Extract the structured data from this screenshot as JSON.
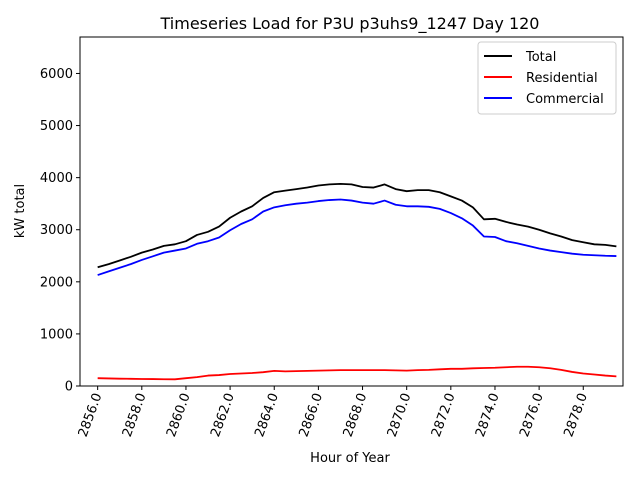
{
  "chart_data": {
    "type": "line",
    "title": "Timeseries Load for P3U p3uhs9_1247  Day 120",
    "xlabel": "Hour of Year",
    "ylabel": "kW total",
    "xlim": [
      2855.2,
      2879.8
    ],
    "ylim": [
      0,
      6700
    ],
    "grid": false,
    "legend_position": "top-right",
    "x_ticks": [
      2856,
      2858,
      2860,
      2862,
      2864,
      2866,
      2868,
      2870,
      2872,
      2874,
      2876,
      2878
    ],
    "x_tick_labels": [
      "2856.0",
      "2858.0",
      "2860.0",
      "2862.0",
      "2864.0",
      "2866.0",
      "2868.0",
      "2870.0",
      "2872.0",
      "2874.0",
      "2876.0",
      "2878.0"
    ],
    "y_ticks": [
      0,
      1000,
      2000,
      3000,
      4000,
      5000,
      6000
    ],
    "y_tick_labels": [
      "0",
      "1000",
      "2000",
      "3000",
      "4000",
      "5000",
      "6000"
    ],
    "x": [
      2856.0,
      2856.5,
      2857.0,
      2857.5,
      2858.0,
      2858.5,
      2859.0,
      2859.5,
      2860.0,
      2860.5,
      2861.0,
      2861.5,
      2862.0,
      2862.5,
      2863.0,
      2863.5,
      2864.0,
      2864.5,
      2865.0,
      2865.5,
      2866.0,
      2866.5,
      2867.0,
      2867.5,
      2868.0,
      2868.5,
      2869.0,
      2869.5,
      2870.0,
      2870.5,
      2871.0,
      2871.5,
      2872.0,
      2872.5,
      2873.0,
      2873.5,
      2874.0,
      2874.5,
      2875.0,
      2875.5,
      2876.0,
      2876.5,
      2877.0,
      2877.5,
      2878.0,
      2878.5,
      2879.0,
      2879.5
    ],
    "series": [
      {
        "name": "Total",
        "color": "#000000",
        "values": [
          2280,
          2340,
          2410,
          2480,
          2560,
          2620,
          2690,
          2720,
          2780,
          2900,
          2960,
          3060,
          3230,
          3350,
          3450,
          3610,
          3720,
          3750,
          3780,
          3810,
          3850,
          3870,
          3880,
          3870,
          3820,
          3810,
          3870,
          3780,
          3740,
          3760,
          3760,
          3720,
          3640,
          3560,
          3430,
          3200,
          3210,
          3150,
          3100,
          3060,
          3000,
          2930,
          2870,
          2800,
          2760,
          2720,
          2710,
          2680
        ]
      },
      {
        "name": "Residential",
        "color": "#ff0000",
        "values": [
          150,
          145,
          140,
          138,
          135,
          133,
          130,
          128,
          150,
          170,
          200,
          210,
          230,
          240,
          250,
          265,
          290,
          280,
          285,
          290,
          295,
          300,
          305,
          305,
          305,
          305,
          305,
          300,
          295,
          305,
          310,
          320,
          330,
          330,
          340,
          345,
          350,
          360,
          370,
          370,
          360,
          340,
          310,
          270,
          240,
          220,
          200,
          185
        ]
      },
      {
        "name": "Commercial",
        "color": "#0000ff",
        "values": [
          2130,
          2200,
          2270,
          2340,
          2420,
          2490,
          2560,
          2600,
          2640,
          2730,
          2780,
          2850,
          2990,
          3110,
          3200,
          3350,
          3430,
          3470,
          3500,
          3520,
          3550,
          3570,
          3580,
          3560,
          3520,
          3500,
          3560,
          3480,
          3450,
          3450,
          3440,
          3400,
          3320,
          3220,
          3080,
          2870,
          2860,
          2780,
          2740,
          2690,
          2640,
          2600,
          2570,
          2540,
          2520,
          2510,
          2500,
          2495
        ]
      }
    ]
  }
}
